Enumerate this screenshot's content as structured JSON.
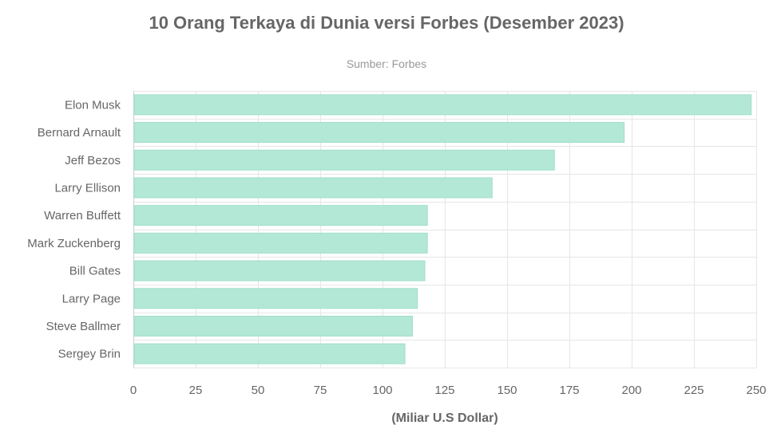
{
  "chart_data": {
    "type": "bar",
    "orientation": "horizontal",
    "title": "10 Orang Terkaya di Dunia versi Forbes (Desember 2023)",
    "subtitle": "Sumber: Forbes",
    "xlabel": "(Miliar U.S Dollar)",
    "ylabel": "",
    "categories": [
      "Elon Musk",
      "Bernard Arnault",
      "Jeff Bezos",
      "Larry Ellison",
      "Warren Buffett",
      "Mark Zuckenberg",
      "Bill Gates",
      "Larry Page",
      "Steve Ballmer",
      "Sergey Brin"
    ],
    "values": [
      248,
      197,
      169,
      144,
      118,
      118,
      117,
      114,
      112,
      109
    ],
    "xlim": [
      0,
      250
    ],
    "ticks": [
      "0",
      "25",
      "50",
      "75",
      "100",
      "125",
      "150",
      "175",
      "200",
      "225",
      "250"
    ],
    "tick_values": [
      0,
      25,
      50,
      75,
      100,
      125,
      150,
      175,
      200,
      225,
      250
    ],
    "grid": true,
    "legend": "none",
    "bar_color": "#b3e8d6",
    "bar_edge_color": "#9fdfc7"
  }
}
